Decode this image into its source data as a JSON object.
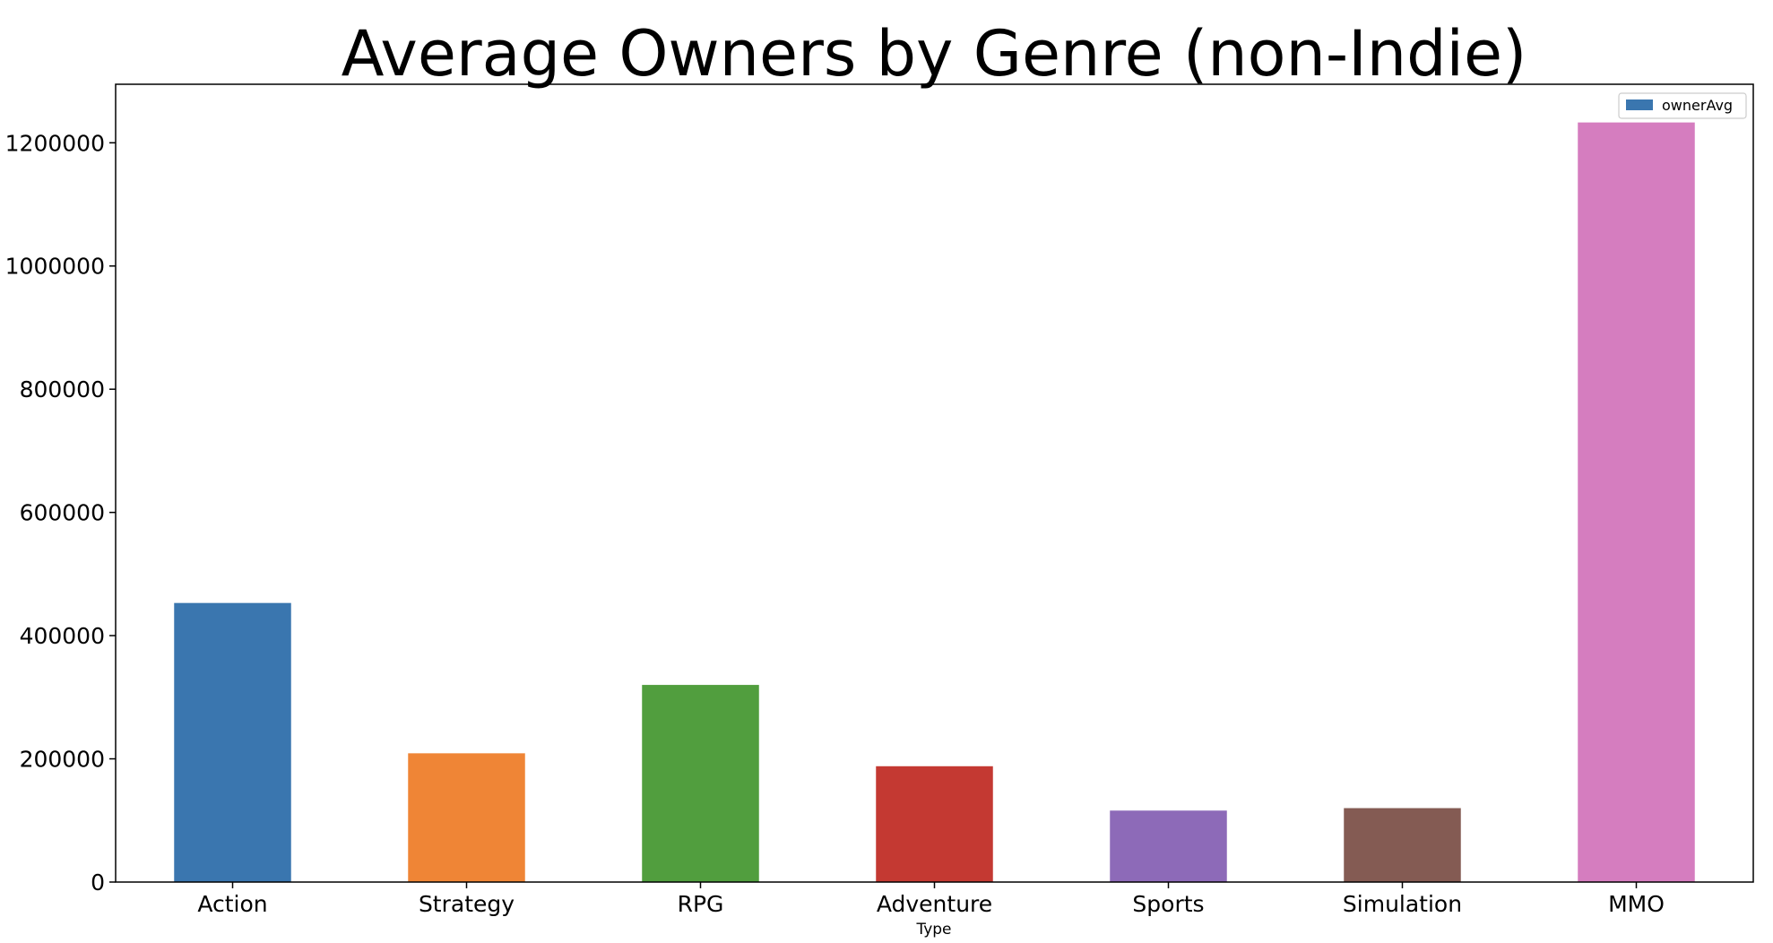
{
  "chart_data": {
    "type": "bar",
    "title": "Average Owners by Genre (non-Indie)",
    "xlabel": "Type",
    "ylabel": "",
    "categories": [
      "Action",
      "Strategy",
      "RPG",
      "Adventure",
      "Sports",
      "Simulation",
      "MMO"
    ],
    "series": [
      {
        "name": "ownerAvg",
        "values": [
          453000,
          209000,
          320000,
          188000,
          116000,
          120000,
          1233000
        ],
        "colors": [
          "#3a76af",
          "#ef8536",
          "#519e3e",
          "#c43932",
          "#8d6ab8",
          "#845b53",
          "#d57dbf"
        ]
      }
    ],
    "yticks": [
      "0",
      "200000",
      "400000",
      "600000",
      "800000",
      "1000000",
      "1200000"
    ],
    "ylim": [
      0,
      1295000
    ],
    "grid": false,
    "legend": {
      "position": "top-right",
      "swatch_color": "#3a76af"
    }
  }
}
